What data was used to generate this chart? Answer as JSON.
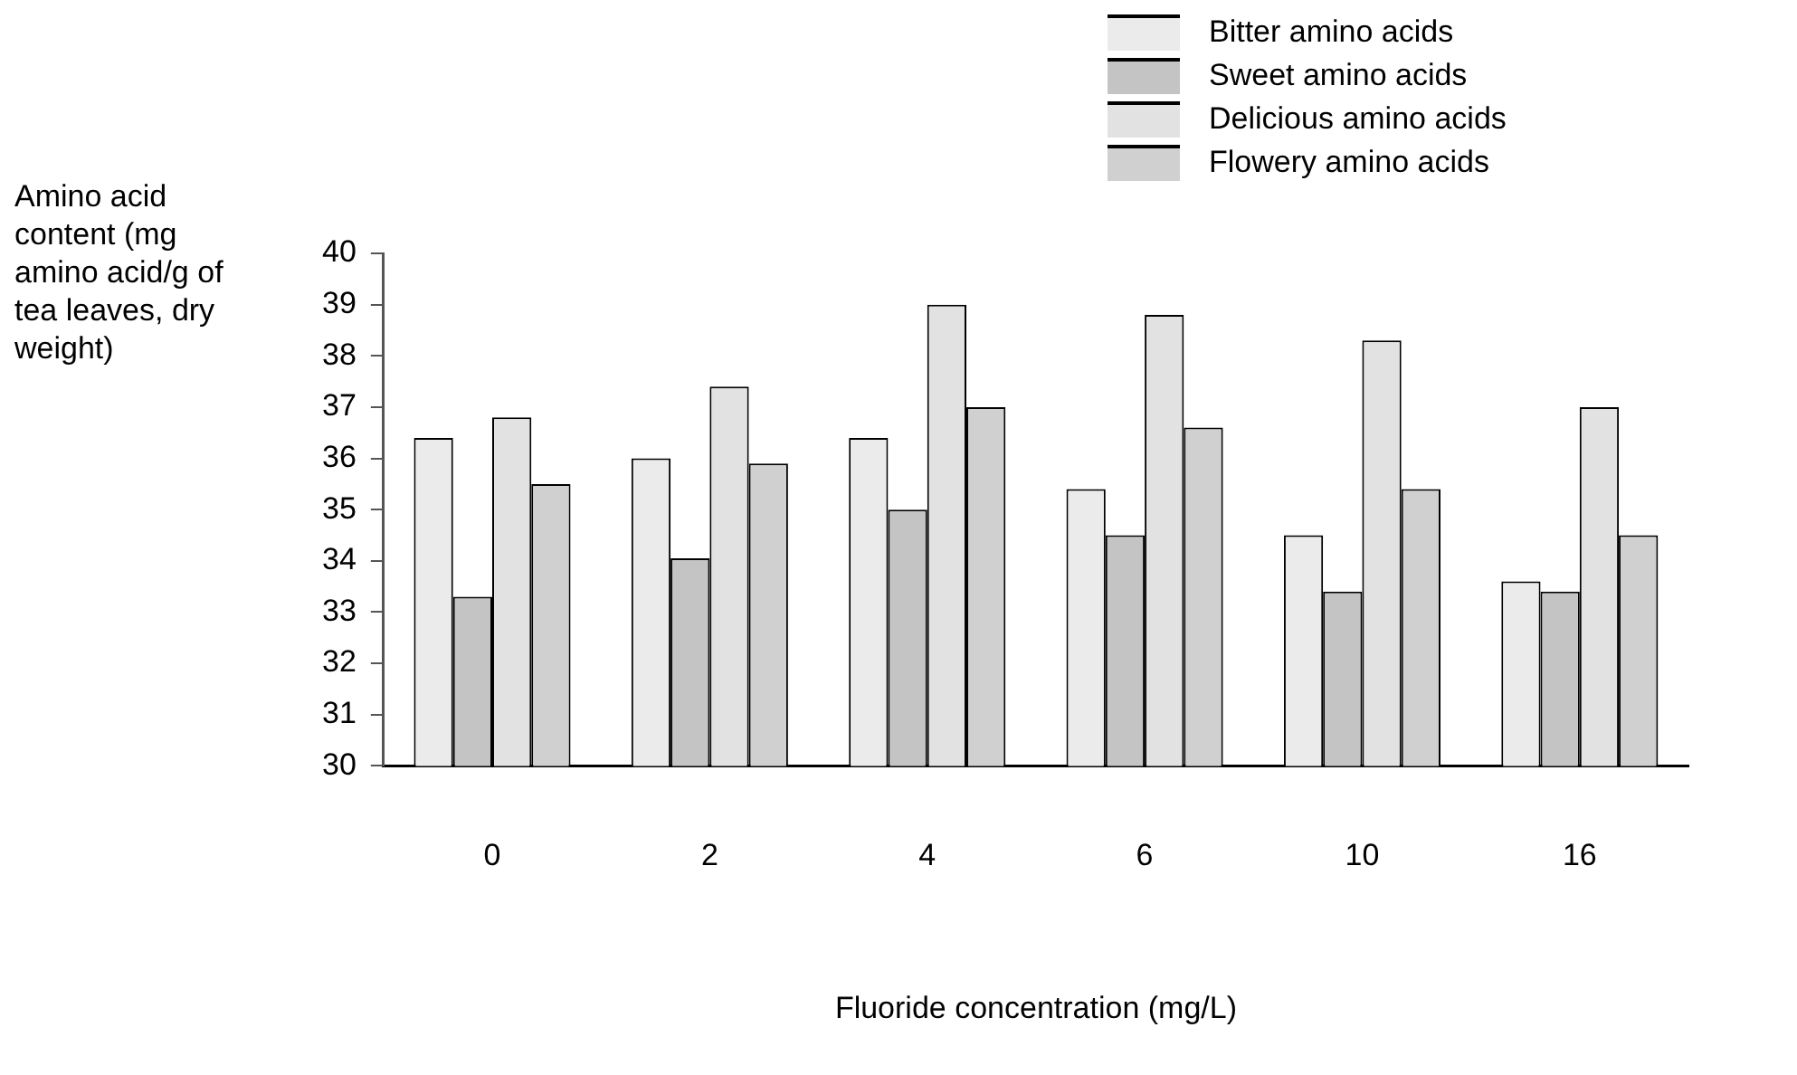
{
  "chart_data": {
    "type": "bar",
    "xlabel": "Fluoride concentration (mg/L)",
    "ylabel": "Amino acid content (mg amino acid/g of tea leaves, dry weight)",
    "categories": [
      "0",
      "2",
      "4",
      "6",
      "10",
      "16"
    ],
    "series": [
      {
        "name": "Bitter amino acids",
        "color": "#ebebeb",
        "values": [
          36.4,
          36.0,
          36.4,
          35.4,
          34.5,
          33.6
        ]
      },
      {
        "name": "Sweet amino acids",
        "color": "#c4c4c4",
        "values": [
          33.3,
          34.05,
          35.0,
          34.5,
          33.4,
          33.4
        ]
      },
      {
        "name": "Delicious amino acids",
        "color": "#e2e2e2",
        "values": [
          36.8,
          37.4,
          39.0,
          38.8,
          38.3,
          37.0
        ]
      },
      {
        "name": "Flowery amino acids",
        "color": "#d0d0d0",
        "values": [
          35.5,
          35.9,
          37.0,
          36.6,
          35.4,
          34.5
        ]
      }
    ],
    "ylim": [
      30,
      40
    ],
    "yticks": [
      30,
      31,
      32,
      33,
      34,
      35,
      36,
      37,
      38,
      39,
      40
    ],
    "grid": false,
    "legend": "top right"
  }
}
